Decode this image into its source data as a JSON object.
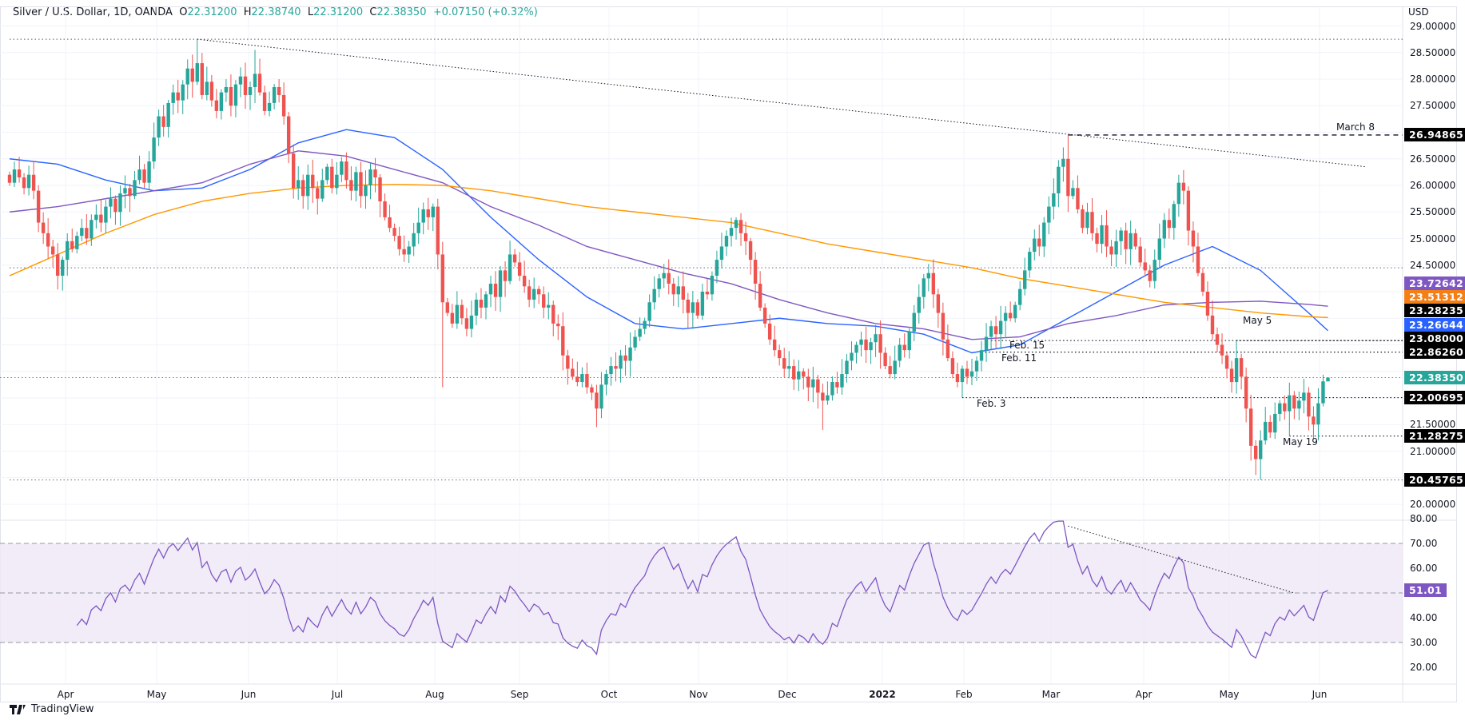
{
  "header": {
    "symbol": "Silver / U.S. Dollar, 1D, OANDA",
    "open_label": "O",
    "open": "22.31200",
    "high_label": "H",
    "high": "22.38740",
    "low_label": "L",
    "low": "22.31200",
    "close_label": "C",
    "close": "22.38350",
    "change": "+0.07150 (+0.32%)"
  },
  "branding": {
    "logo_text": "TradingView"
  },
  "colors": {
    "up": "#26a69a",
    "down": "#ef5350",
    "ma_blue": "#2962ff",
    "ma_purple": "#7e57c2",
    "ma_orange": "#ff9800",
    "rsi": "#7e57c2",
    "rsi_band": "#ede7f6"
  },
  "chart_data": [
    {
      "type": "candlestick",
      "title": "Silver / U.S. Dollar, 1D, OANDA",
      "ylabel": "USD",
      "ylim": [
        20.0,
        29.0
      ],
      "y_ticks": [
        "29.00000",
        "28.50000",
        "28.00000",
        "27.50000",
        "27.00000",
        "26.50000",
        "26.00000",
        "25.50000",
        "25.00000",
        "24.50000",
        "24.00000",
        "23.50000",
        "23.00000",
        "22.50000",
        "22.00000",
        "21.50000",
        "21.00000",
        "20.50000",
        "20.00000"
      ],
      "x_ticks": [
        "Apr",
        "May",
        "Jun",
        "Jul",
        "Aug",
        "Sep",
        "Oct",
        "Nov",
        "Dec",
        "2022",
        "Feb",
        "Mar",
        "Apr",
        "May",
        "Jun"
      ],
      "grid": true,
      "close": [
        26.05,
        26.3,
        26.15,
        25.95,
        26.2,
        25.9,
        25.3,
        25.1,
        24.85,
        24.7,
        24.3,
        24.6,
        24.95,
        24.8,
        25.05,
        25.2,
        25.0,
        25.35,
        25.45,
        25.3,
        25.6,
        25.75,
        25.5,
        25.85,
        25.95,
        25.8,
        26.1,
        26.3,
        26.05,
        26.45,
        26.9,
        27.3,
        27.1,
        27.55,
        27.75,
        27.6,
        27.9,
        28.2,
        27.95,
        28.3,
        27.7,
        27.95,
        27.6,
        27.4,
        27.75,
        27.85,
        27.5,
        27.9,
        28.05,
        27.7,
        27.85,
        28.1,
        27.75,
        27.4,
        27.55,
        27.85,
        27.7,
        27.3,
        26.6,
        25.95,
        26.1,
        25.8,
        26.2,
        25.95,
        25.75,
        26.1,
        26.35,
        25.95,
        26.2,
        26.45,
        26.1,
        25.9,
        26.25,
        25.8,
        26.0,
        26.3,
        26.15,
        25.7,
        25.4,
        25.2,
        25.05,
        24.8,
        24.7,
        24.85,
        25.1,
        25.3,
        25.55,
        25.4,
        25.6,
        24.7,
        23.8,
        23.6,
        23.4,
        23.75,
        23.5,
        23.3,
        23.55,
        23.85,
        23.7,
        23.95,
        24.15,
        23.9,
        24.4,
        24.2,
        24.7,
        24.55,
        24.3,
        24.1,
        23.85,
        24.05,
        23.95,
        23.7,
        23.75,
        23.4,
        23.35,
        22.8,
        22.55,
        22.4,
        22.3,
        22.45,
        22.2,
        22.1,
        21.8,
        22.25,
        22.45,
        22.6,
        22.55,
        22.8,
        22.7,
        22.95,
        23.15,
        23.3,
        23.45,
        23.8,
        24.05,
        24.25,
        24.35,
        24.15,
        23.95,
        24.1,
        23.85,
        23.6,
        23.8,
        23.55,
        24.0,
        23.95,
        24.3,
        24.6,
        24.85,
        25.05,
        25.2,
        25.35,
        25.1,
        24.95,
        24.6,
        24.15,
        23.7,
        23.4,
        23.1,
        22.9,
        22.75,
        22.55,
        22.6,
        22.35,
        22.5,
        22.4,
        22.2,
        22.35,
        22.1,
        21.95,
        22.05,
        22.3,
        22.2,
        22.45,
        22.7,
        22.85,
        23.0,
        23.1,
        22.9,
        23.05,
        23.2,
        22.85,
        22.6,
        22.45,
        22.7,
        23.0,
        22.9,
        23.25,
        23.6,
        23.9,
        24.25,
        24.35,
        23.95,
        23.6,
        23.1,
        22.75,
        22.45,
        22.3,
        22.55,
        22.4,
        22.5,
        22.7,
        22.9,
        23.15,
        23.35,
        23.2,
        23.45,
        23.6,
        23.5,
        23.75,
        24.05,
        24.4,
        24.75,
        25.0,
        24.85,
        25.3,
        25.6,
        25.85,
        26.35,
        26.5,
        25.8,
        25.95,
        25.55,
        25.2,
        25.5,
        25.1,
        24.9,
        25.25,
        24.85,
        24.7,
        24.95,
        25.15,
        24.8,
        25.1,
        24.85,
        24.55,
        24.4,
        24.2,
        24.6,
        25.0,
        25.35,
        25.2,
        25.65,
        26.05,
        25.9,
        25.15,
        24.85,
        24.35,
        24.0,
        23.55,
        23.2,
        23.0,
        22.8,
        22.55,
        22.3,
        22.75,
        22.4,
        21.8,
        21.1,
        20.85,
        21.2,
        21.55,
        21.35,
        21.7,
        21.9,
        21.75,
        22.05,
        21.8,
        21.95,
        22.1,
        21.65,
        21.5,
        21.9,
        22.312,
        22.3835
      ],
      "last_candle": {
        "open": 22.312,
        "high": 22.3874,
        "low": 22.312,
        "close": 22.3835
      },
      "wick_extremes": [
        {
          "bar": 39,
          "high": 28.75
        },
        {
          "bar": 51,
          "high": 28.55
        },
        {
          "bar": 90,
          "low": 22.2
        },
        {
          "bar": 122,
          "low": 21.45
        },
        {
          "bar": 151,
          "high": 25.4
        },
        {
          "bar": 169,
          "low": 21.4
        },
        {
          "bar": 198,
          "low": 22.00695
        },
        {
          "bar": 220,
          "high": 26.94865
        },
        {
          "bar": 243,
          "high": 26.2
        },
        {
          "bar": 255,
          "high": 23.08
        },
        {
          "bar": 260,
          "low": 20.45765
        },
        {
          "bar": 266,
          "low": 21.28275
        }
      ],
      "moving_averages": [
        {
          "color": "#2962ff",
          "last": 23.26644,
          "every_10_bars": [
            26.5,
            26.4,
            26.1,
            25.9,
            25.95,
            26.3,
            26.8,
            27.05,
            26.9,
            26.3,
            25.4,
            24.6,
            23.9,
            23.4,
            23.3,
            23.4,
            23.5,
            23.4,
            23.35,
            23.2,
            22.85,
            23.0,
            23.5,
            24.0,
            24.5,
            24.85,
            24.4,
            23.6
          ]
        },
        {
          "color": "#7e57c2",
          "last": 23.72642,
          "every_10_bars": [
            25.5,
            25.6,
            25.75,
            25.9,
            26.05,
            26.4,
            26.65,
            26.55,
            26.3,
            26.05,
            25.6,
            25.25,
            24.85,
            24.6,
            24.35,
            24.15,
            23.85,
            23.6,
            23.4,
            23.3,
            23.1,
            23.15,
            23.4,
            23.55,
            23.75,
            23.8,
            23.82,
            23.76
          ]
        },
        {
          "color": "#ff9800",
          "last": 23.51312,
          "every_10_bars": [
            24.3,
            24.7,
            25.1,
            25.45,
            25.7,
            25.85,
            25.95,
            26.0,
            26.02,
            26.0,
            25.9,
            25.75,
            25.6,
            25.5,
            25.4,
            25.3,
            25.1,
            24.9,
            24.75,
            24.6,
            24.45,
            24.25,
            24.1,
            23.95,
            23.8,
            23.7,
            23.6,
            23.53
          ]
        }
      ],
      "levels": [
        {
          "price": 26.94865,
          "label": "March 8",
          "badge": "26.94865",
          "style": "dashed",
          "from_bar": 220
        },
        {
          "price": 23.28235,
          "badge": "23.28235",
          "style": "none"
        },
        {
          "price": 23.08,
          "label": "May 5",
          "badge": "23.08000",
          "style": "dotted",
          "from_bar": 255
        },
        {
          "price": 23.08,
          "label": "Feb. 15",
          "style": "dotted",
          "from_bar": 204
        },
        {
          "price": 22.8626,
          "label": "Feb. 11",
          "badge": "22.86260",
          "style": "dotted",
          "from_bar": 202
        },
        {
          "price": 22.00695,
          "label": "Feb. 3",
          "badge": "22.00695",
          "style": "dotted",
          "from_bar": 198
        },
        {
          "price": 21.28275,
          "label": "May 19",
          "badge": "21.28275",
          "style": "dotted",
          "from_bar": 266
        },
        {
          "price": 20.45765,
          "badge": "20.45765",
          "style": "dotted",
          "from_bar": 0
        },
        {
          "price": 28.75,
          "style": "dotted",
          "from_bar": 0
        },
        {
          "price": 24.45,
          "style": "dotted",
          "from_bar": 0
        }
      ],
      "trendline": {
        "from": {
          "bar": 39,
          "price": 28.75
        },
        "to": {
          "bar": 282,
          "price": 26.35
        }
      },
      "current_price": {
        "price": 22.3835,
        "badge": "22.38350"
      },
      "ma_badges": [
        {
          "text": "23.72642",
          "price": 23.72642,
          "color": "#7e57c2"
        },
        {
          "text": "23.51312",
          "price": 23.51312,
          "color": "#f57f17"
        },
        {
          "text": "23.26644",
          "price": 23.26644,
          "color": "#2962ff"
        }
      ]
    },
    {
      "type": "line",
      "indicator": "RSI",
      "ylim": [
        20,
        80
      ],
      "y_ticks": [
        "80.00",
        "70.00",
        "60.00",
        "50.00",
        "40.00",
        "30.00",
        "20.00"
      ],
      "bands": {
        "upper": 70,
        "middle": 50,
        "lower": 30
      },
      "last": 51.01,
      "badge": "51.01",
      "trendline": {
        "from": {
          "bar": 220,
          "value": 77
        },
        "to": {
          "bar": 267,
          "value": 50
        }
      }
    }
  ]
}
